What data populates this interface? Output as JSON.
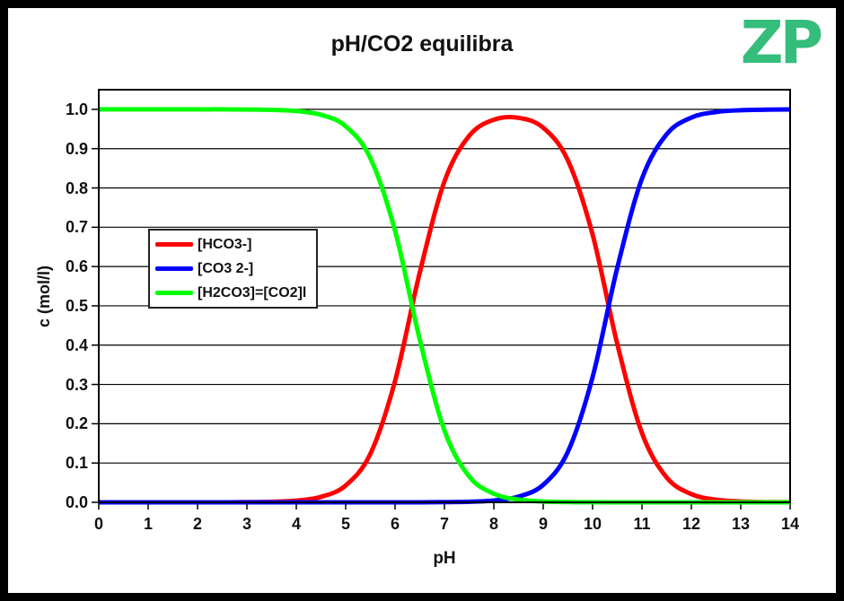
{
  "frame": {
    "border_color": "#000000",
    "background": "#ffffff"
  },
  "logo": {
    "text": "ZP",
    "color": "#35bd7c"
  },
  "chart_data": {
    "type": "line",
    "title": "pH/CO2 equilibra",
    "xlabel": "pH",
    "ylabel": "c (mol/l)",
    "xlim": [
      0,
      14
    ],
    "ylim": [
      0,
      1.05
    ],
    "grid": "horizontal",
    "grid_color": "#000000",
    "plot_border_color": "#000000",
    "legend_position": "middle-left",
    "x_ticks": [
      0,
      1,
      2,
      3,
      4,
      5,
      6,
      7,
      8,
      9,
      10,
      11,
      12,
      13,
      14
    ],
    "y_ticks": [
      "0.0",
      "0.1",
      "0.2",
      "0.3",
      "0.4",
      "0.5",
      "0.6",
      "0.7",
      "0.8",
      "0.9",
      "1.0"
    ],
    "x": [
      0,
      0.5,
      1,
      1.5,
      2,
      2.5,
      3,
      3.5,
      4,
      4.5,
      5,
      5.5,
      6,
      6.5,
      7,
      7.5,
      8,
      8.5,
      9,
      9.5,
      10,
      10.5,
      11,
      11.5,
      12,
      12.5,
      13,
      13.5,
      14
    ],
    "series": [
      {
        "name": "[HCO3-]",
        "color": "#ff0000",
        "values": [
          0,
          0,
          0,
          0,
          0.0001,
          0.0001,
          0.0004,
          0.0014,
          0.0044,
          0.0139,
          0.0428,
          0.1235,
          0.309,
          0.5846,
          0.8166,
          0.9325,
          0.9736,
          0.9785,
          0.9533,
          0.8702,
          0.6813,
          0.4031,
          0.1762,
          0.0633,
          0.0209,
          0.0067,
          0.0021,
          0.0007,
          0.0002
        ]
      },
      {
        "name": "[CO3 2-]",
        "color": "#0000ff",
        "values": [
          0,
          0,
          0,
          0,
          0,
          0,
          0,
          0,
          0,
          0,
          0,
          0,
          0,
          0.0001,
          0.0004,
          0.0014,
          0.0046,
          0.0145,
          0.0446,
          0.1288,
          0.3187,
          0.5969,
          0.8238,
          0.9366,
          0.9791,
          0.9932,
          0.9978,
          0.9993,
          0.9998
        ]
      },
      {
        "name": "[H2CO3]=[CO2]l",
        "color": "#00ff00",
        "values": [
          1,
          1,
          1,
          1,
          0.9999,
          0.9999,
          0.9996,
          0.9986,
          0.9956,
          0.9861,
          0.9572,
          0.8759,
          0.6909,
          0.4141,
          0.1829,
          0.066,
          0.0218,
          0.0069,
          0.0021,
          0.0006,
          0.0002,
          0,
          0,
          0,
          0,
          0,
          0,
          0,
          0
        ]
      }
    ]
  }
}
